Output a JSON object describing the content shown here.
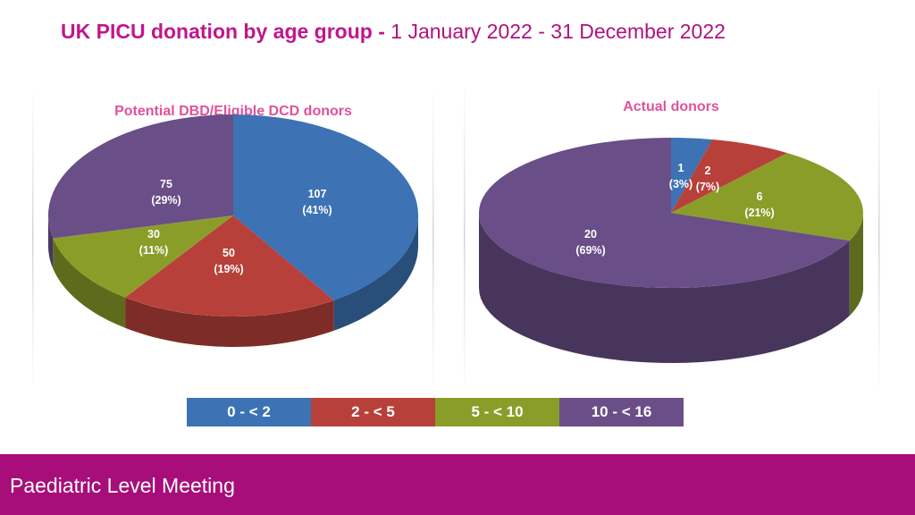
{
  "header": {
    "title_bold": "UK PICU donation by age group - ",
    "title_rest": "1 January 2022 - 31 December 2022"
  },
  "colors": {
    "title": "#c0168f",
    "chart_title": "#e0529b",
    "footer_bg": "#a70e7a",
    "series": [
      "#3d72b4",
      "#b8403a",
      "#8b9d29",
      "#6a4e87"
    ]
  },
  "legend": {
    "items": [
      {
        "label": "0 - < 2",
        "color": "#3d72b4"
      },
      {
        "label": "2 - < 5",
        "color": "#b8403a"
      },
      {
        "label": "5 - < 10",
        "color": "#8b9d29"
      },
      {
        "label": "10 - < 16",
        "color": "#6a4e87"
      }
    ]
  },
  "chart_data": [
    {
      "type": "pie",
      "title": "Potential DBD/Eligible DCD donors",
      "categories": [
        "0 - < 2",
        "2 - < 5",
        "5 - < 10",
        "10 - < 16"
      ],
      "values": [
        107,
        50,
        30,
        75
      ],
      "labels": [
        {
          "value": "107",
          "percent": "(41%)"
        },
        {
          "value": "50",
          "percent": "(19%)"
        },
        {
          "value": "30",
          "percent": "(11%)"
        },
        {
          "value": "75",
          "percent": "(29%)"
        }
      ]
    },
    {
      "type": "pie",
      "title": "Actual donors",
      "categories": [
        "0 - < 2",
        "2 - < 5",
        "5 - < 10",
        "10 - < 16"
      ],
      "values": [
        1,
        2,
        6,
        20
      ],
      "labels": [
        {
          "value": "1",
          "percent": "(3%)"
        },
        {
          "value": "2",
          "percent": "(7%)"
        },
        {
          "value": "6",
          "percent": "(21%)"
        },
        {
          "value": "20",
          "percent": "(69%)"
        }
      ]
    }
  ],
  "footer": {
    "text": "Paediatric Level Meeting"
  }
}
